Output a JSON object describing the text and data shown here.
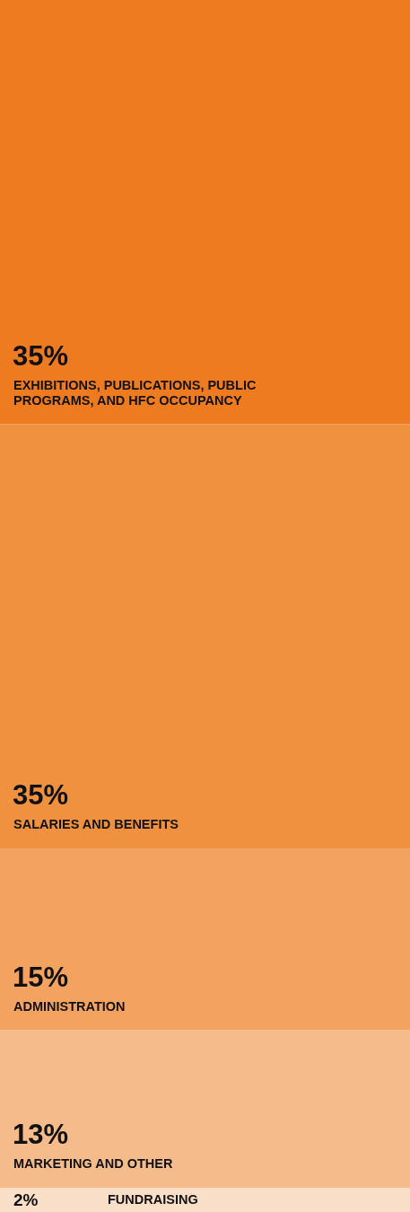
{
  "chart_data": {
    "type": "bar",
    "stacked": true,
    "categories": [
      null
    ],
    "series": [
      {
        "name": "FUNDRAISING",
        "color": "#f9dfc8",
        "values": [
          2
        ],
        "value_labels": [
          "2%"
        ]
      },
      {
        "name": "MARKETING AND OTHER",
        "color": "#f5bb8b",
        "values": [
          13
        ],
        "value_labels": [
          "13%"
        ]
      },
      {
        "name": "ADMINISTRATION",
        "color": "#f3a260",
        "values": [
          15
        ],
        "value_labels": [
          "15%"
        ]
      },
      {
        "name": "SALARIES AND BENEFITS",
        "color": "#ef913e",
        "values": [
          35
        ],
        "value_labels": [
          "35%"
        ]
      },
      {
        "name": "EXHIBITIONS, PUBLICATIONS, PUBLIC PROGRAMS, AND HFC OCCUPANCY",
        "color": "#ef7b20",
        "values": [
          35
        ],
        "value_labels": [
          "35%"
        ]
      }
    ]
  }
}
